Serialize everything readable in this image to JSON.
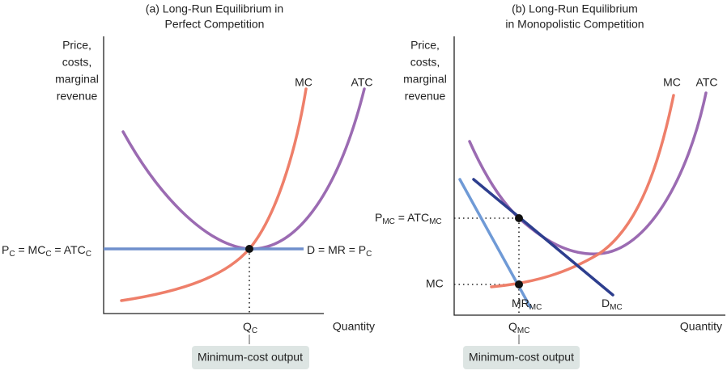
{
  "panel_a": {
    "title": [
      "(a) Long-Run Equilibrium in",
      "Perfect Competition"
    ],
    "y_label": [
      "Price,",
      "costs,",
      "marginal",
      "revenue"
    ],
    "x_label": "Quantity",
    "mc_label": "MC",
    "atc_label": "ATC",
    "price_label": [
      "P",
      "C",
      " = MC",
      "C",
      " = ATC",
      "C"
    ],
    "demand_label": [
      "D = MR = P",
      "C"
    ],
    "q_label": [
      "Q",
      "C"
    ],
    "box_label": "Minimum-cost output"
  },
  "panel_b": {
    "title": [
      "(b) Long-Run Equilibrium",
      "in Monopolistic Competition"
    ],
    "y_label": [
      "Price,",
      "costs,",
      "marginal",
      "revenue"
    ],
    "x_label": "Quantity",
    "mc_label": "MC",
    "atc_label": "ATC",
    "price_label": [
      "P",
      "MC",
      " = ATC",
      "MC"
    ],
    "mc_level_label": "MC",
    "mr_label": [
      "MR",
      "MC"
    ],
    "d_label": [
      "D",
      "MC"
    ],
    "q_label": [
      "Q",
      "MC"
    ],
    "box_label": "Minimum-cost output"
  }
}
